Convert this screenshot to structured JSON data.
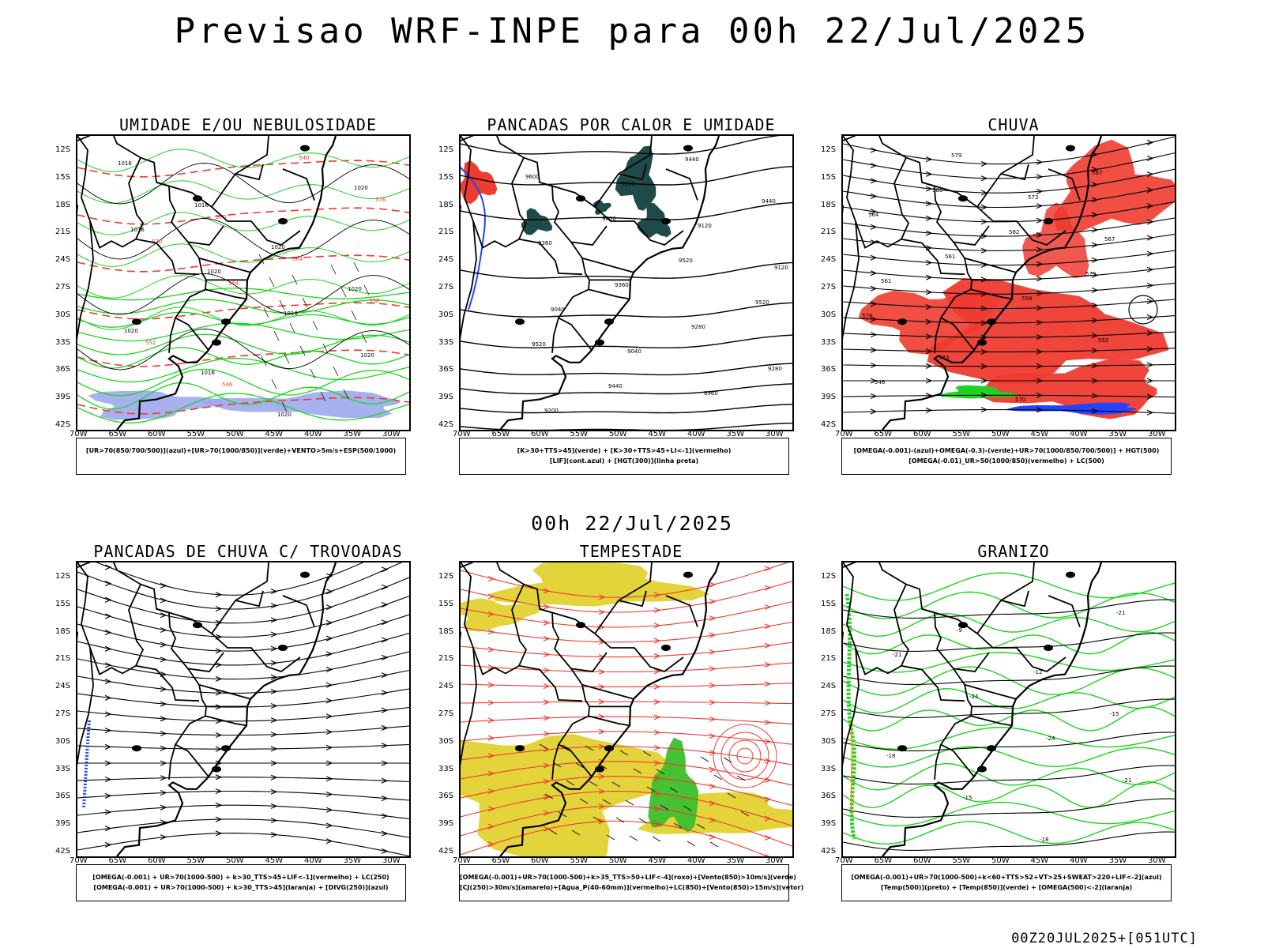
{
  "title": "Previsao WRF-INPE  para 00h 22/Jul/2025",
  "subtitle": "00h 22/Jul/2025",
  "footer": "00Z20JUL2025+[051UTC]",
  "axes": {
    "lat_labels": [
      "12S",
      "15S",
      "18S",
      "21S",
      "24S",
      "27S",
      "30S",
      "33S",
      "36S",
      "39S",
      "42S"
    ],
    "lon_labels": [
      "70W",
      "65W",
      "60W",
      "55W",
      "50W",
      "45W",
      "40W",
      "35W",
      "30W"
    ]
  },
  "panels": [
    {
      "id": "umidade",
      "title": "UMIDADE E/OU NEBULOSIDADE",
      "legend": [
        "[UR>70(850/700/500)](azul)+[UR>70(1000/850)](verde)+VENTO>5m/s+ESP(500/1000)"
      ],
      "contour_labels": [
        "1016",
        "1016",
        "1020",
        "1020",
        "1020",
        "1016",
        "1020",
        "1020",
        "1016",
        "1020",
        "1016",
        "1020",
        "570",
        "564",
        "558",
        "552",
        "546",
        "540",
        "576",
        "570",
        "564"
      ]
    },
    {
      "id": "pancadas-calor",
      "title": "PANCADAS POR CALOR E UMIDADE",
      "legend": [
        "[K>30+TTS>45](verde) + [K>30+TTS>45+LI<-1](vermelho)",
        "[LIF](cont.azul) + [HGT(300)](linha preta)"
      ],
      "contour_labels": [
        "9600",
        "9600",
        "9520",
        "9520",
        "9520",
        "9440",
        "9440",
        "9440",
        "9360",
        "9360",
        "9280",
        "9280",
        "9200",
        "9200",
        "9120",
        "9120",
        "9040",
        "9040",
        "8960"
      ]
    },
    {
      "id": "chuva",
      "title": "CHUVA",
      "legend": [
        "[OMEGA(-0.001)-(azul)+OMEGA(-0.3)-(verde)+UR>70(1000/850/700/500)] + HGT(500)",
        "[OMEGA(-0.01)_UR>50(1000/850)(vermelho) + LC(500)"
      ],
      "contour_labels": [
        "585",
        "582",
        "579",
        "576",
        "573",
        "570",
        "567",
        "564",
        "561",
        "558",
        "552",
        "546",
        "579",
        "573",
        "567",
        "561"
      ]
    },
    {
      "id": "pancadas-trovoadas",
      "title": "PANCADAS DE CHUVA C/ TROVOADAS",
      "legend": [
        "[OMEGA(-0.001) + UR>70(1000-500) + k>30_TTS>45+LIF<-1](vermelho) + LC(250)",
        "[OMEGA(-0.001) + UR>70(1000-500) + k>30_TTS>45](laranja) + [DIVG(250)](azul)"
      ],
      "contour_labels": []
    },
    {
      "id": "tempestade",
      "title": "TEMPESTADE",
      "legend": [
        "[OMEGA(-0.001)+UR>70(1000-500)+k>35_TTS>50+LIF<-4](roxo)+[Vento(850)>10m/s](verde)",
        "[CJ(250)>30m/s](amarelo)+[Agua_P(40-60mm)](vermelho)+LC(850)+[Vento(850)>15m/s](vetor)"
      ],
      "contour_labels": []
    },
    {
      "id": "granizo",
      "title": "GRANIZO",
      "legend": [
        "[OMEGA(-0.001)+UR>70(1000-500)+k<60+TTS>52+VT>25+SWEAT>220+LIF<-2](azul)",
        "[Temp(500)](preto) + [Temp(850)](verde) + [OMEGA(500)<-2](laranja)"
      ],
      "contour_labels": [
        "-9",
        "-12",
        "-15",
        "-18",
        "-15",
        "-18",
        "-21",
        "-21",
        "-24",
        "-24",
        "-21"
      ]
    }
  ]
}
